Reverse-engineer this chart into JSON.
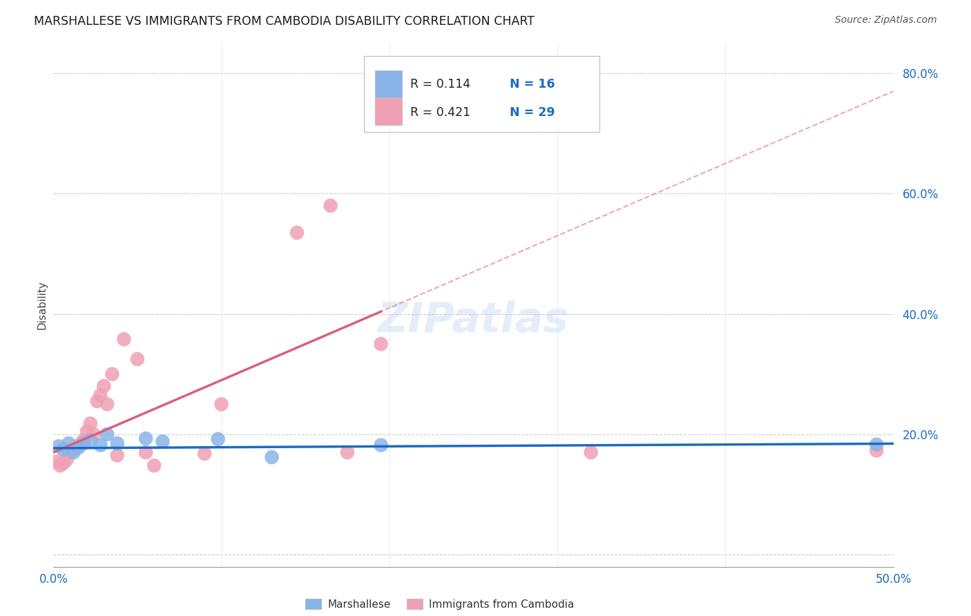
{
  "title": "MARSHALLESE VS IMMIGRANTS FROM CAMBODIA DISABILITY CORRELATION CHART",
  "source": "Source: ZipAtlas.com",
  "ylabel": "Disability",
  "xlim": [
    0.0,
    0.5
  ],
  "ylim": [
    -0.02,
    0.85
  ],
  "yticks": [
    0.0,
    0.2,
    0.4,
    0.6,
    0.8
  ],
  "ytick_labels": [
    "",
    "20.0%",
    "40.0%",
    "60.0%",
    "80.0%"
  ],
  "xticks": [
    0.0,
    0.1,
    0.2,
    0.3,
    0.4,
    0.5
  ],
  "background_color": "#ffffff",
  "marshallese_color": "#8ab4e8",
  "cambodia_color": "#f0a0b4",
  "marshallese_line_color": "#1a6bc2",
  "cambodia_line_color": "#d95f7a",
  "marshallese_R": 0.114,
  "marshallese_N": 16,
  "cambodia_R": 0.421,
  "cambodia_N": 29,
  "marshallese_points": [
    [
      0.003,
      0.18
    ],
    [
      0.006,
      0.175
    ],
    [
      0.009,
      0.185
    ],
    [
      0.012,
      0.17
    ],
    [
      0.015,
      0.178
    ],
    [
      0.018,
      0.185
    ],
    [
      0.022,
      0.19
    ],
    [
      0.028,
      0.182
    ],
    [
      0.032,
      0.2
    ],
    [
      0.038,
      0.185
    ],
    [
      0.055,
      0.193
    ],
    [
      0.065,
      0.188
    ],
    [
      0.098,
      0.192
    ],
    [
      0.13,
      0.162
    ],
    [
      0.195,
      0.182
    ],
    [
      0.49,
      0.183
    ]
  ],
  "cambodia_points": [
    [
      0.002,
      0.155
    ],
    [
      0.004,
      0.148
    ],
    [
      0.006,
      0.152
    ],
    [
      0.008,
      0.158
    ],
    [
      0.01,
      0.17
    ],
    [
      0.012,
      0.175
    ],
    [
      0.015,
      0.182
    ],
    [
      0.018,
      0.19
    ],
    [
      0.02,
      0.205
    ],
    [
      0.022,
      0.218
    ],
    [
      0.024,
      0.2
    ],
    [
      0.026,
      0.255
    ],
    [
      0.028,
      0.265
    ],
    [
      0.03,
      0.28
    ],
    [
      0.032,
      0.25
    ],
    [
      0.035,
      0.3
    ],
    [
      0.038,
      0.165
    ],
    [
      0.042,
      0.358
    ],
    [
      0.05,
      0.325
    ],
    [
      0.055,
      0.17
    ],
    [
      0.06,
      0.148
    ],
    [
      0.09,
      0.168
    ],
    [
      0.1,
      0.25
    ],
    [
      0.145,
      0.535
    ],
    [
      0.165,
      0.58
    ],
    [
      0.175,
      0.17
    ],
    [
      0.195,
      0.35
    ],
    [
      0.32,
      0.17
    ],
    [
      0.49,
      0.173
    ]
  ],
  "grid_color": "#cccccc",
  "legend_border_color": "#cccccc"
}
